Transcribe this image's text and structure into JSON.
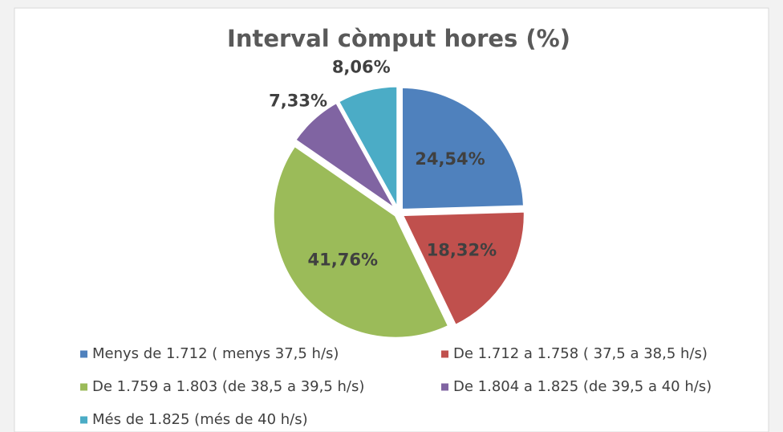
{
  "chart_data": {
    "type": "pie",
    "title": "Interval còmput hores (%)",
    "categories": [
      "Menys de 1.712 ( menys 37,5 h/s)",
      "De 1.712 a 1.758 ( 37,5 a 38,5 h/s)",
      "De 1.759 a 1.803 (de 38,5 a 39,5 h/s)",
      "De 1.804 a 1.825 (de 39,5 a 40 h/s)",
      "Més de 1.825 (més de 40 h/s)"
    ],
    "values": [
      24.54,
      18.32,
      41.76,
      7.33,
      8.06
    ],
    "value_labels": [
      "24,54%",
      "18,32%",
      "41,76%",
      "7,33%",
      "8,06%"
    ],
    "colors": [
      "#4f81bd",
      "#c0504d",
      "#9bbb59",
      "#8064a2",
      "#4bacc6"
    ],
    "legend": "bottom"
  }
}
